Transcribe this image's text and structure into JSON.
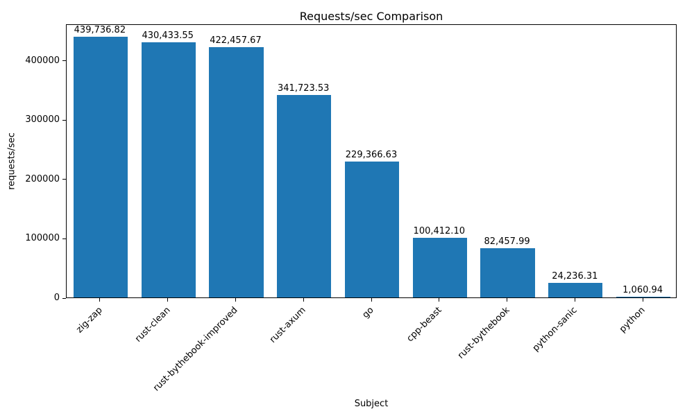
{
  "chart_data": {
    "type": "bar",
    "title": "Requests/sec Comparison",
    "xlabel": "Subject",
    "ylabel": "requests/sec",
    "categories": [
      "zig-zap",
      "rust-clean",
      "rust-bythebook-improved",
      "rust-axum",
      "go",
      "cpp-beast",
      "rust-bythebook",
      "python-sanic",
      "python"
    ],
    "values": [
      439736.82,
      430433.55,
      422457.67,
      341723.53,
      229366.63,
      100412.1,
      82457.99,
      24236.31,
      1060.94
    ],
    "value_labels": [
      "439,736.82",
      "430,433.55",
      "422,457.67",
      "341,723.53",
      "229,366.63",
      "100,412.10",
      "82,457.99",
      "24,236.31",
      "1,060.94"
    ],
    "yticks": [
      0,
      100000,
      200000,
      300000,
      400000
    ],
    "ytick_labels": [
      "0",
      "100000",
      "200000",
      "300000",
      "400000"
    ],
    "ylim": [
      0,
      461723
    ],
    "bar_color": "#1f77b4",
    "grid": false,
    "legend": "none"
  }
}
